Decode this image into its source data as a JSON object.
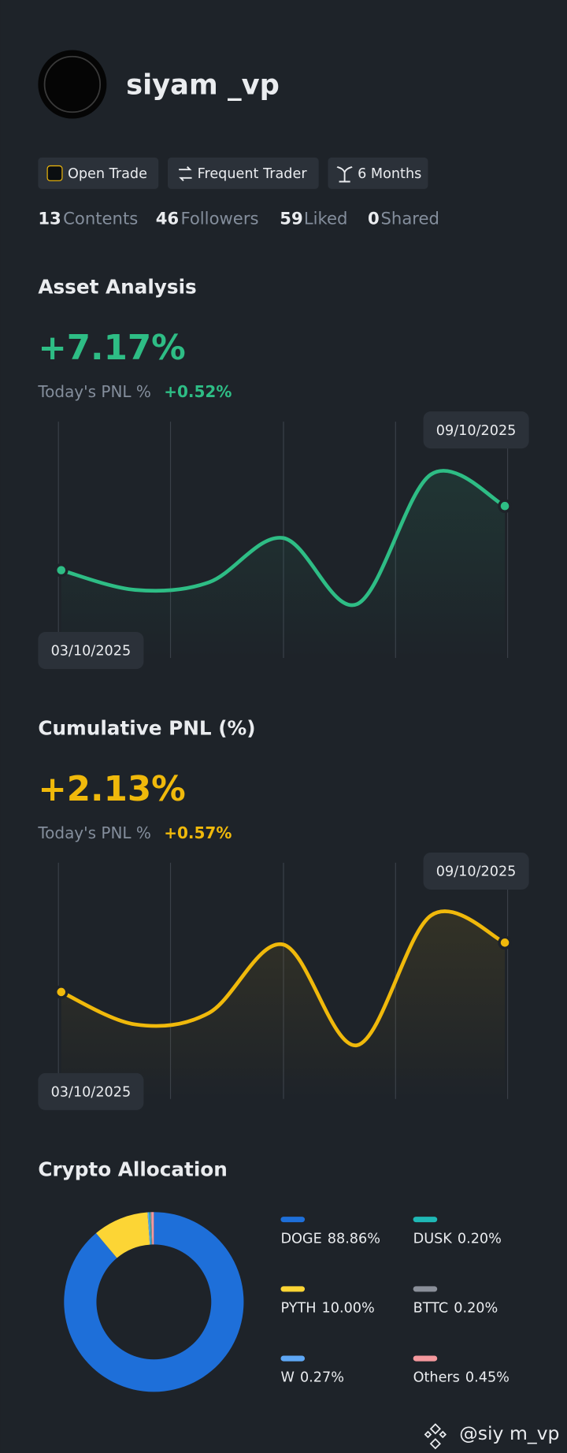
{
  "profile": {
    "name": "siyam _vp",
    "badges": [
      "Open Trade",
      "Frequent Trader",
      "6 Months"
    ],
    "stats": [
      {
        "value": 13,
        "label": "Contents"
      },
      {
        "value": 46,
        "label": "Followers"
      },
      {
        "value": 59,
        "label": "Liked"
      },
      {
        "value": 0,
        "label": "Shared"
      }
    ]
  },
  "chart_data": [
    {
      "type": "line",
      "title": "Asset Analysis",
      "headline": "+7.17%",
      "subtitle_label": "Today's PNL %",
      "subtitle_value": "+0.52%",
      "categories": [
        "03/10/2025",
        null,
        null,
        null,
        null,
        null,
        "09/10/2025"
      ],
      "values": [
        0,
        -2.2,
        -1.35,
        3.6,
        -3.8,
        10.7,
        7.17
      ],
      "color": "#2ebd85"
    },
    {
      "type": "line",
      "title": "Cumulative PNL (%)",
      "headline": "+2.13%",
      "subtitle_label": "Today's PNL %",
      "subtitle_value": "+0.57%",
      "categories": [
        "03/10/2025",
        null,
        null,
        null,
        null,
        null,
        "09/10/2025"
      ],
      "values": [
        0,
        -1.4,
        -0.9,
        2.05,
        -2.3,
        3.3,
        2.13
      ],
      "color": "#f0b90b"
    },
    {
      "type": "pie",
      "title": "Crypto Allocation",
      "categories": [
        "DOGE",
        "PYTH",
        "W",
        "DUSK",
        "BTTC",
        "Others"
      ],
      "values": [
        88.86,
        10.0,
        0.27,
        0.2,
        0.2,
        0.45
      ],
      "value_labels": [
        "88.86%",
        "10.00%",
        "0.27%",
        "0.20%",
        "0.20%",
        "0.45%"
      ],
      "colors": [
        "#1e6fd9",
        "#fcd535",
        "#5ea7f5",
        "#1fb8b5",
        "#8a8f99",
        "#f5989d"
      ]
    }
  ],
  "footer": {
    "watermark": "@siy m_vp"
  }
}
